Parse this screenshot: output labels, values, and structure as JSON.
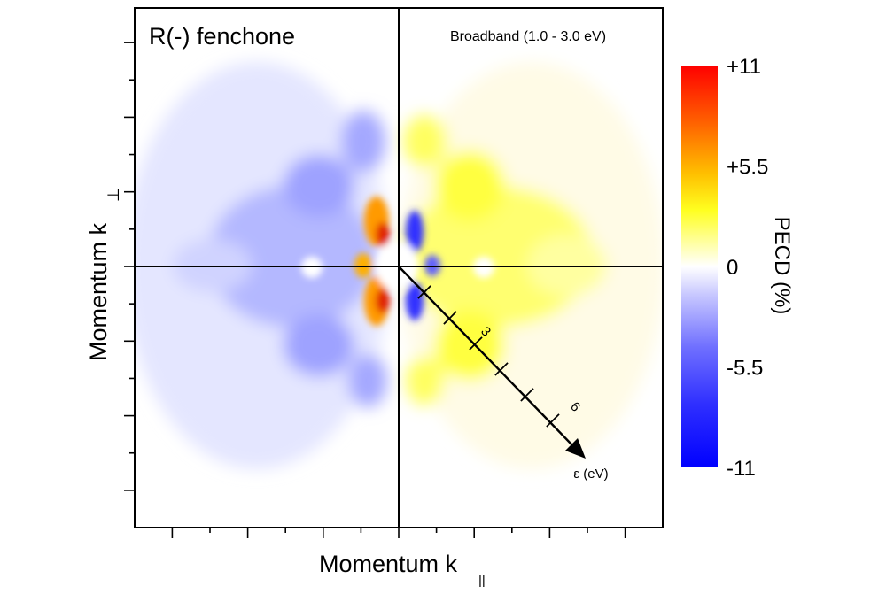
{
  "chart_data": {
    "type": "heatmap",
    "panel_label": "R(-) fenchone",
    "subtitle": "Broadband (1.0  -  3.0 eV)",
    "xlabel_main": "Momentum k",
    "xlabel_sub": "||",
    "ylabel_main": "Momentum k",
    "ylabel_sub": "⊥",
    "colorbar": {
      "label": "PECD (%)",
      "ticks": [
        "+11",
        "+5.5",
        "0",
        "-5.5",
        "-11"
      ],
      "range": [
        -11,
        11
      ],
      "colors": {
        "max": "#ff0000",
        "upper": "#ffff00",
        "zero": "#ffffff",
        "lower": "#2020ff",
        "min": "#0000ff"
      }
    },
    "energy_arrow": {
      "label": "ε (eV)",
      "tick_labels": [
        "3",
        "6"
      ],
      "ticks": [
        1,
        2,
        3,
        4,
        5,
        6
      ]
    },
    "grid": false
  }
}
